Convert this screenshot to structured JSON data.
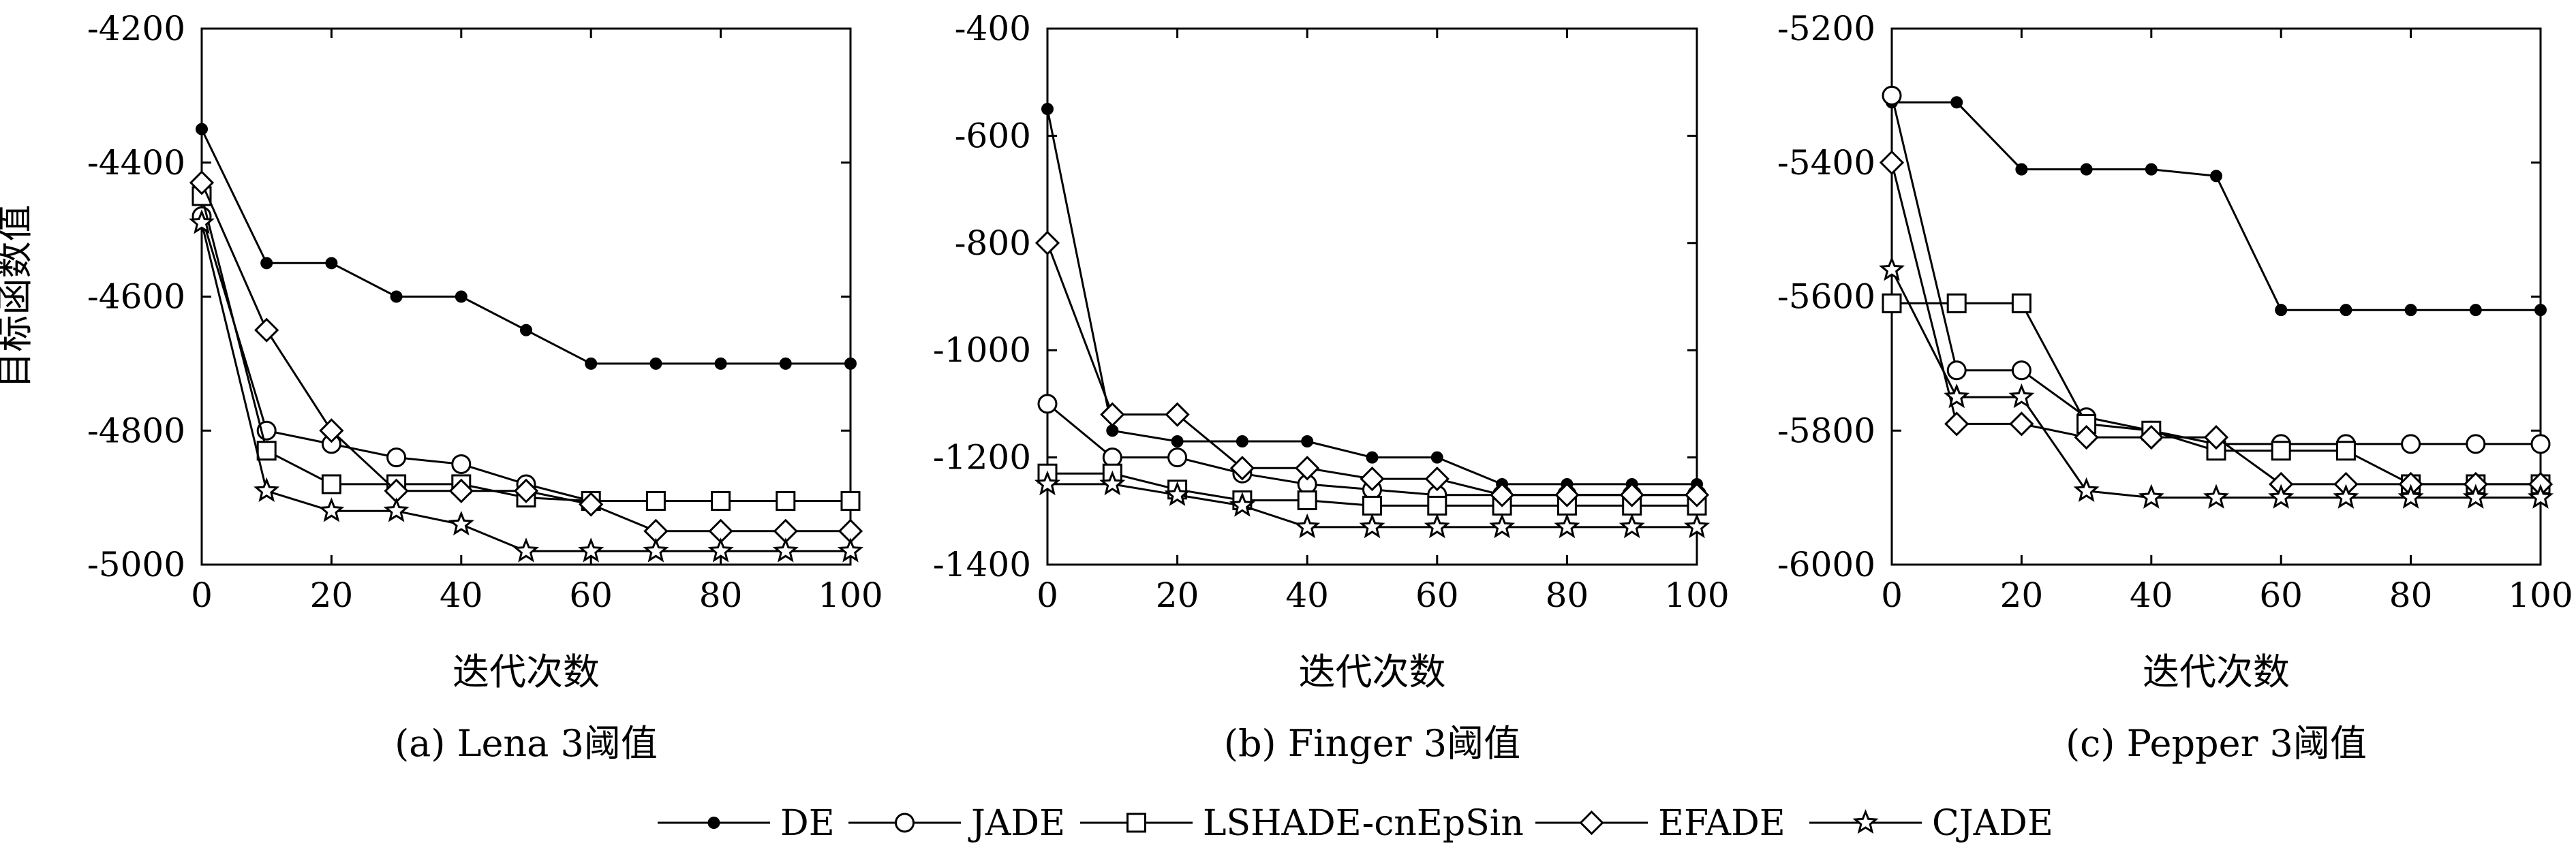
{
  "shared": {
    "x_axis_label": "迭代次数",
    "y_axis_label": "目标函数值"
  },
  "legend": [
    {
      "name": "DE",
      "marker": "dot"
    },
    {
      "name": "JADE",
      "marker": "circle"
    },
    {
      "name": "LSHADE-cnEpSin",
      "marker": "square"
    },
    {
      "name": "EFADE",
      "marker": "diamond"
    },
    {
      "name": "CJADE",
      "marker": "star"
    }
  ],
  "colors": {
    "line": "#000000",
    "background": "#ffffff"
  },
  "chart_data": [
    {
      "type": "line",
      "caption": "(a) Lena 3阈值",
      "xlabel": "迭代次数",
      "ylabel": "目标函数值",
      "xlim": [
        0,
        100
      ],
      "ylim": [
        -5000,
        -4200
      ],
      "xticks": [
        "0",
        "20",
        "40",
        "60",
        "80",
        "100"
      ],
      "yticks": [
        "-4200",
        "-4400",
        "-4600",
        "-4800",
        "-5000"
      ],
      "grid": false,
      "x": [
        0,
        10,
        20,
        30,
        40,
        50,
        60,
        70,
        80,
        90,
        100
      ],
      "series": [
        {
          "name": "DE",
          "values": [
            -4350,
            -4550,
            -4550,
            -4600,
            -4600,
            -4650,
            -4700,
            -4700,
            -4700,
            -4700,
            -4700
          ]
        },
        {
          "name": "JADE",
          "values": [
            -4480,
            -4800,
            -4820,
            -4840,
            -4850,
            -4880,
            -4905,
            -4905,
            -4905,
            -4905,
            -4905
          ]
        },
        {
          "name": "LSHADE-cnEpSin",
          "values": [
            -4450,
            -4830,
            -4880,
            -4880,
            -4880,
            -4900,
            -4905,
            -4905,
            -4905,
            -4905,
            -4905
          ]
        },
        {
          "name": "EFADE",
          "values": [
            -4430,
            -4650,
            -4800,
            -4890,
            -4890,
            -4890,
            -4910,
            -4950,
            -4950,
            -4950,
            -4950
          ]
        },
        {
          "name": "CJADE",
          "values": [
            -4490,
            -4890,
            -4920,
            -4920,
            -4940,
            -4980,
            -4980,
            -4980,
            -4980,
            -4980,
            -4980
          ]
        }
      ]
    },
    {
      "type": "line",
      "caption": "(b) Finger 3阈值",
      "xlabel": "迭代次数",
      "ylabel": "",
      "xlim": [
        0,
        100
      ],
      "ylim": [
        -1400,
        -400
      ],
      "xticks": [
        "0",
        "20",
        "40",
        "60",
        "80",
        "100"
      ],
      "yticks": [
        "-400",
        "-600",
        "-800",
        "-1000",
        "-1200",
        "-1400"
      ],
      "grid": false,
      "x": [
        0,
        10,
        20,
        30,
        40,
        50,
        60,
        70,
        80,
        90,
        100
      ],
      "series": [
        {
          "name": "DE",
          "values": [
            -550,
            -1150,
            -1170,
            -1170,
            -1170,
            -1200,
            -1200,
            -1250,
            -1250,
            -1250,
            -1250
          ]
        },
        {
          "name": "JADE",
          "values": [
            -1100,
            -1200,
            -1200,
            -1230,
            -1250,
            -1260,
            -1270,
            -1270,
            -1270,
            -1270,
            -1270
          ]
        },
        {
          "name": "LSHADE-cnEpSin",
          "values": [
            -1230,
            -1230,
            -1260,
            -1280,
            -1280,
            -1290,
            -1290,
            -1290,
            -1290,
            -1290,
            -1290
          ]
        },
        {
          "name": "EFADE",
          "values": [
            -800,
            -1120,
            -1120,
            -1220,
            -1220,
            -1240,
            -1240,
            -1270,
            -1270,
            -1270,
            -1270
          ]
        },
        {
          "name": "CJADE",
          "values": [
            -1250,
            -1250,
            -1270,
            -1290,
            -1330,
            -1330,
            -1330,
            -1330,
            -1330,
            -1330,
            -1330
          ]
        }
      ]
    },
    {
      "type": "line",
      "caption": "(c) Pepper 3阈值",
      "xlabel": "迭代次数",
      "ylabel": "",
      "xlim": [
        0,
        100
      ],
      "ylim": [
        -6000,
        -5200
      ],
      "xticks": [
        "0",
        "20",
        "40",
        "60",
        "80",
        "100"
      ],
      "yticks": [
        "-5200",
        "-5400",
        "-5600",
        "-5800",
        "-6000"
      ],
      "grid": false,
      "x": [
        0,
        10,
        20,
        30,
        40,
        50,
        60,
        70,
        80,
        90,
        100
      ],
      "series": [
        {
          "name": "DE",
          "values": [
            -5310,
            -5310,
            -5410,
            -5410,
            -5410,
            -5420,
            -5620,
            -5620,
            -5620,
            -5620,
            -5620
          ]
        },
        {
          "name": "JADE",
          "values": [
            -5300,
            -5710,
            -5710,
            -5780,
            -5800,
            -5820,
            -5820,
            -5820,
            -5820,
            -5820,
            -5820
          ]
        },
        {
          "name": "LSHADE-cnEpSin",
          "values": [
            -5610,
            -5610,
            -5610,
            -5790,
            -5800,
            -5830,
            -5830,
            -5830,
            -5880,
            -5880,
            -5880
          ]
        },
        {
          "name": "EFADE",
          "values": [
            -5400,
            -5790,
            -5790,
            -5810,
            -5810,
            -5810,
            -5880,
            -5880,
            -5880,
            -5880,
            -5880
          ]
        },
        {
          "name": "CJADE",
          "values": [
            -5560,
            -5750,
            -5750,
            -5890,
            -5900,
            -5900,
            -5900,
            -5900,
            -5900,
            -5900,
            -5900
          ]
        }
      ]
    }
  ]
}
